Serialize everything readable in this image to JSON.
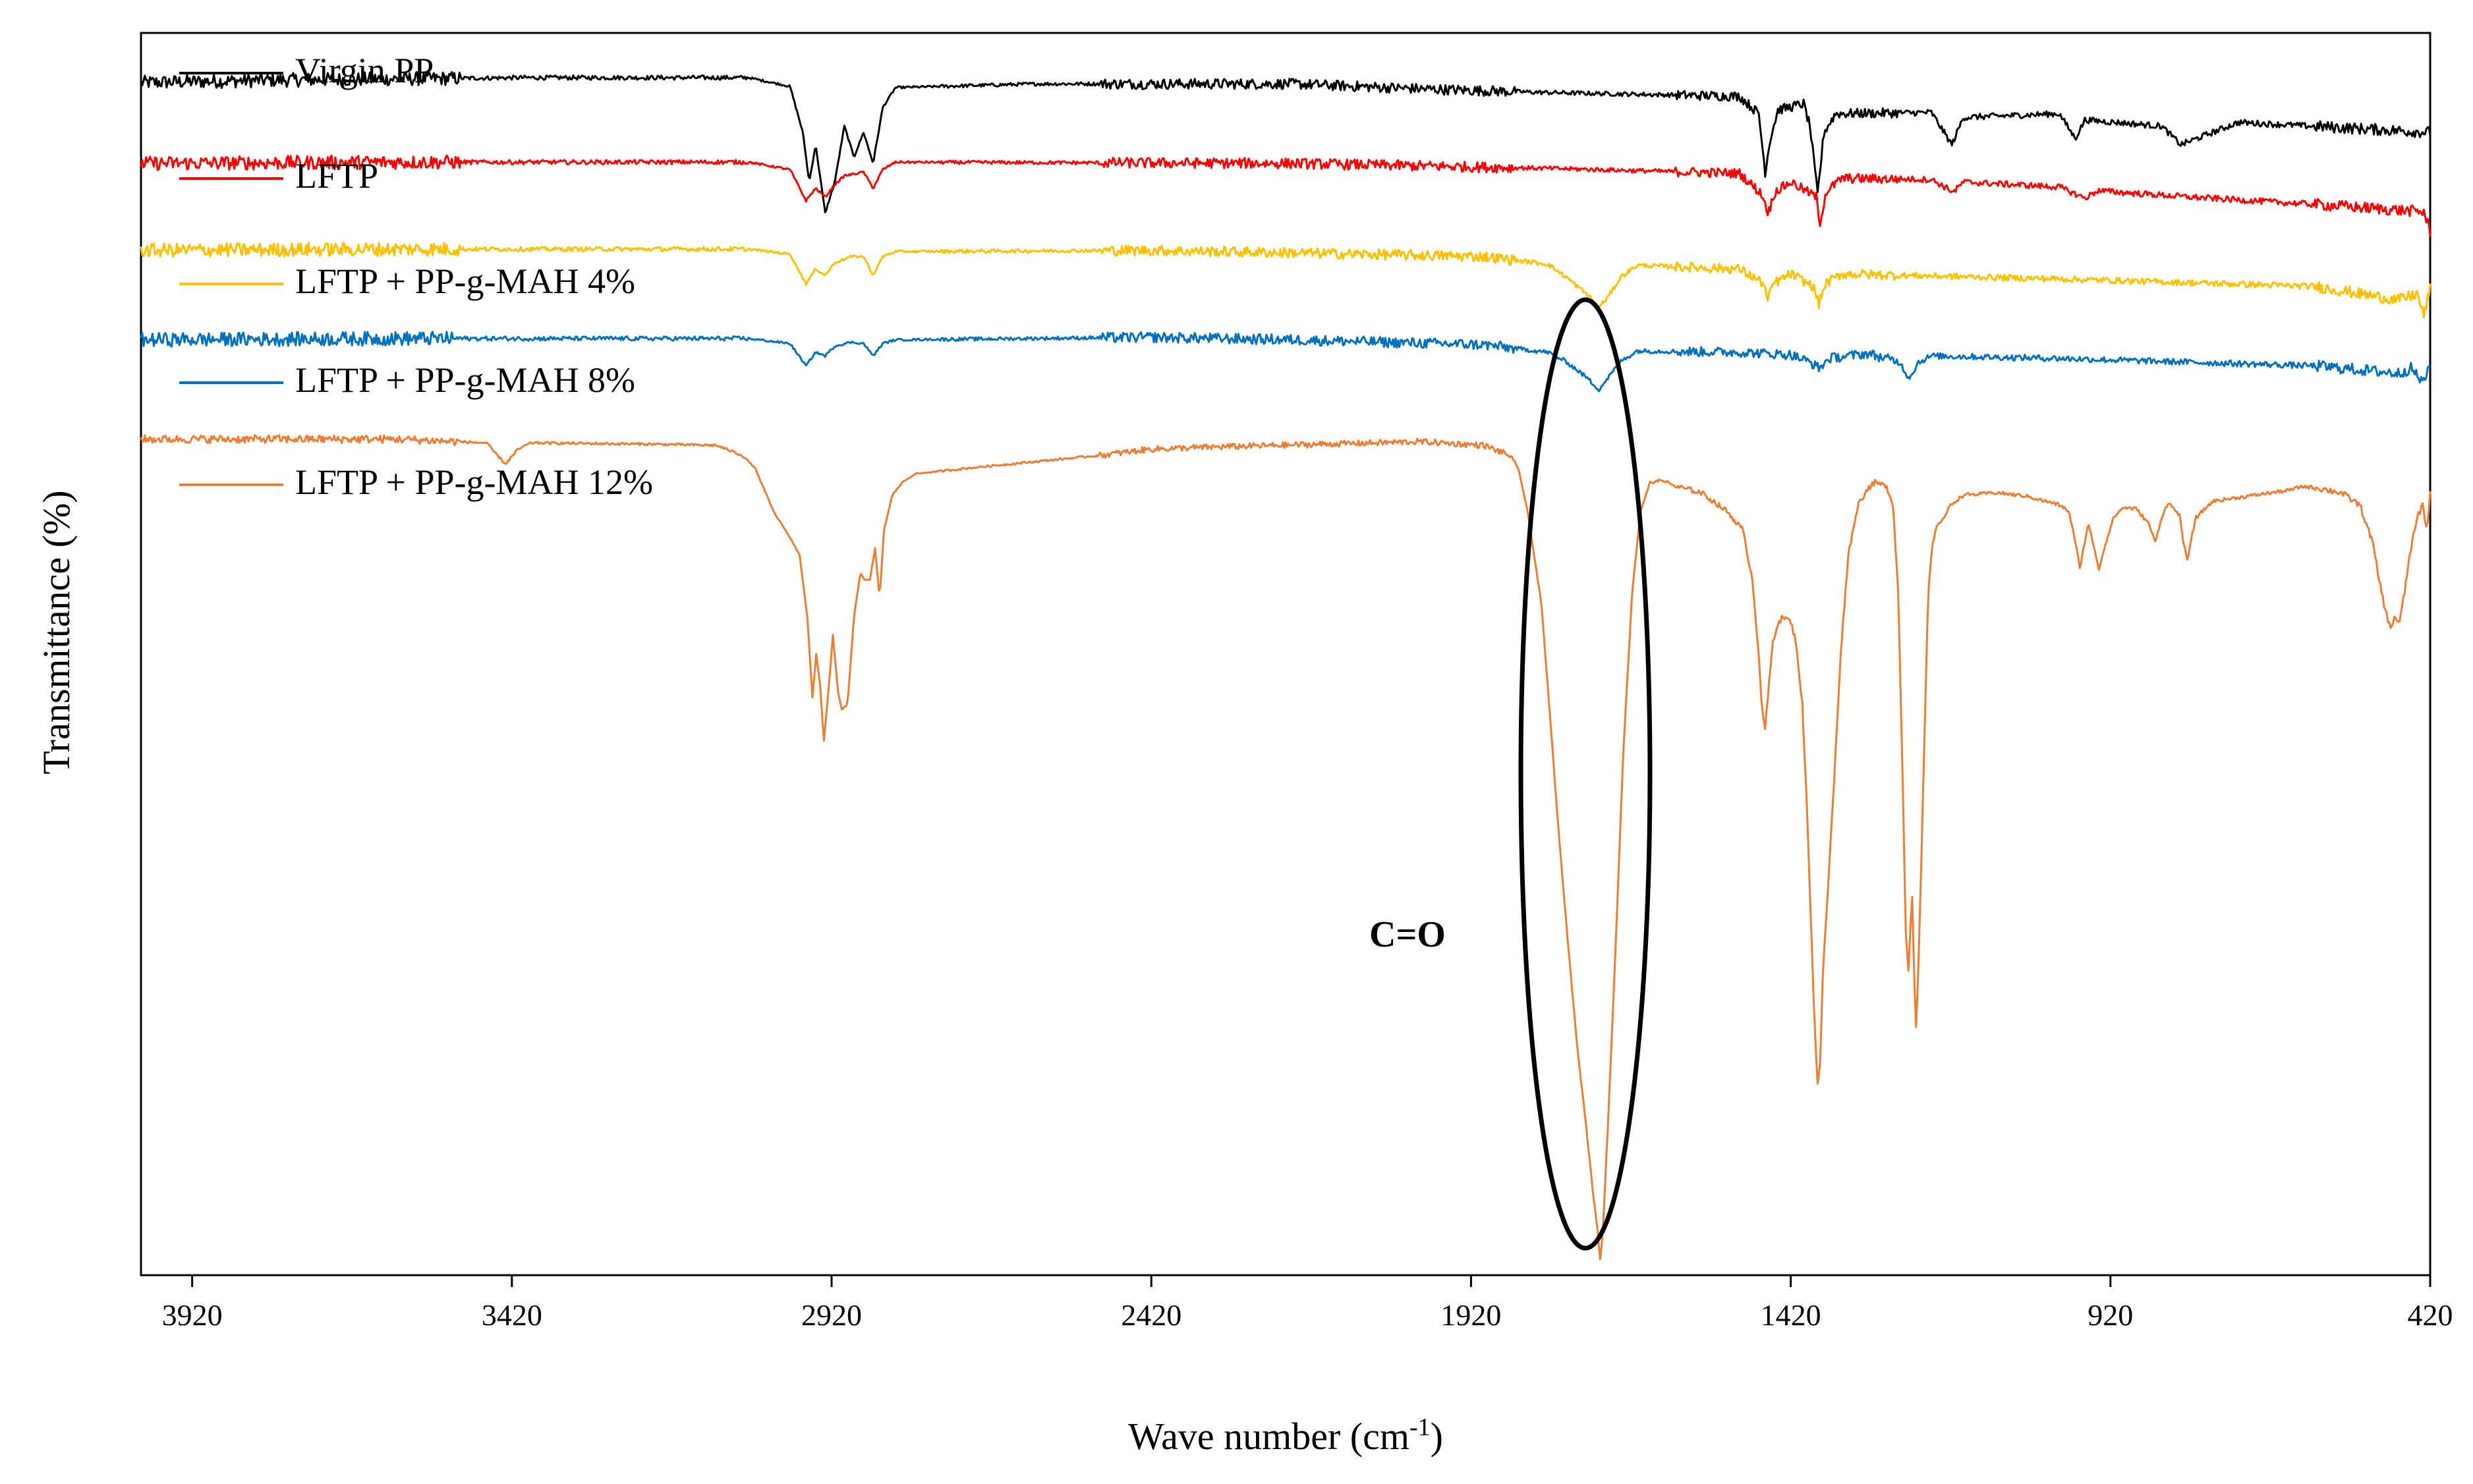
{
  "chart_data": {
    "type": "line",
    "title": "",
    "xlabel_base": "Wave number (cm",
    "xlabel_sup": "-1",
    "xlabel_tail": ")",
    "ylabel": "Transmittance (%)",
    "xlim": [
      4000,
      420
    ],
    "x_reversed": true,
    "ylim": [
      0,
      100
    ],
    "y_ticks_shown": false,
    "grid": false,
    "legend_position": "top-left",
    "x_ticks": [
      3920,
      3420,
      2920,
      2420,
      1920,
      1420,
      920,
      420
    ],
    "x_tick_labels": [
      "3920",
      "3420",
      "2920",
      "2420",
      "1920",
      "1420",
      "920",
      "420"
    ],
    "annotation": {
      "text": "C=O",
      "x": 1720,
      "shape": "ellipse"
    },
    "series": [
      {
        "name": "Virgin PP",
        "color": "#000000",
        "noise": 0.35,
        "points": [
          [
            4000,
            96.0
          ],
          [
            3800,
            96.2
          ],
          [
            3400,
            96.4
          ],
          [
            3050,
            96.4
          ],
          [
            2985,
            95.7
          ],
          [
            2965,
            92.0
          ],
          [
            2955,
            88.0
          ],
          [
            2945,
            91.0
          ],
          [
            2930,
            85.5
          ],
          [
            2915,
            88.0
          ],
          [
            2900,
            92.5
          ],
          [
            2885,
            90.0
          ],
          [
            2870,
            92.0
          ],
          [
            2855,
            89.5
          ],
          [
            2840,
            94.0
          ],
          [
            2820,
            95.6
          ],
          [
            2600,
            95.9
          ],
          [
            2200,
            95.9
          ],
          [
            2000,
            95.5
          ],
          [
            1800,
            95.2
          ],
          [
            1500,
            94.9
          ],
          [
            1470,
            93.5
          ],
          [
            1460,
            88.8
          ],
          [
            1452,
            91.5
          ],
          [
            1440,
            93.8
          ],
          [
            1400,
            94.3
          ],
          [
            1390,
            92.5
          ],
          [
            1378,
            87.0
          ],
          [
            1368,
            92.0
          ],
          [
            1350,
            93.5
          ],
          [
            1200,
            93.6
          ],
          [
            1168,
            91.0
          ],
          [
            1150,
            93.2
          ],
          [
            1000,
            93.5
          ],
          [
            975,
            91.5
          ],
          [
            960,
            93.0
          ],
          [
            840,
            92.5
          ],
          [
            810,
            91.0
          ],
          [
            720,
            92.8
          ],
          [
            420,
            92.0
          ]
        ]
      },
      {
        "name": "LFTP",
        "color": "#ff0000",
        "noise": 0.35,
        "points": [
          [
            4000,
            89.5
          ],
          [
            3600,
            89.6
          ],
          [
            3050,
            89.6
          ],
          [
            2985,
            89.0
          ],
          [
            2960,
            86.5
          ],
          [
            2945,
            87.5
          ],
          [
            2930,
            86.8
          ],
          [
            2915,
            87.8
          ],
          [
            2900,
            88.5
          ],
          [
            2870,
            88.8
          ],
          [
            2855,
            87.5
          ],
          [
            2840,
            89.0
          ],
          [
            2820,
            89.6
          ],
          [
            2200,
            89.5
          ],
          [
            2000,
            89.3
          ],
          [
            1800,
            89.1
          ],
          [
            1500,
            88.7
          ],
          [
            1465,
            87.0
          ],
          [
            1455,
            85.5
          ],
          [
            1445,
            87.2
          ],
          [
            1420,
            88.0
          ],
          [
            1380,
            86.8
          ],
          [
            1375,
            84.5
          ],
          [
            1365,
            87.2
          ],
          [
            1340,
            88.3
          ],
          [
            1200,
            88.2
          ],
          [
            1165,
            87.2
          ],
          [
            1150,
            88.0
          ],
          [
            1000,
            87.6
          ],
          [
            960,
            86.7
          ],
          [
            940,
            87.3
          ],
          [
            800,
            86.8
          ],
          [
            600,
            86.2
          ],
          [
            430,
            85.6
          ],
          [
            420,
            84.0
          ]
        ]
      },
      {
        "name": "LFTP + PP-g-MAH 4%",
        "color": "#ffc000",
        "noise": 0.35,
        "points": [
          [
            4000,
            82.5
          ],
          [
            3600,
            82.6
          ],
          [
            3050,
            82.6
          ],
          [
            2985,
            82.2
          ],
          [
            2960,
            79.8
          ],
          [
            2945,
            81.0
          ],
          [
            2930,
            80.5
          ],
          [
            2915,
            81.5
          ],
          [
            2890,
            82.0
          ],
          [
            2870,
            82.0
          ],
          [
            2855,
            80.5
          ],
          [
            2840,
            82.0
          ],
          [
            2820,
            82.4
          ],
          [
            2420,
            82.5
          ],
          [
            2200,
            82.3
          ],
          [
            1900,
            82.0
          ],
          [
            1800,
            81.4
          ],
          [
            1770,
            80.3
          ],
          [
            1735,
            78.8
          ],
          [
            1720,
            77.9
          ],
          [
            1705,
            78.8
          ],
          [
            1685,
            80.4
          ],
          [
            1660,
            81.3
          ],
          [
            1500,
            81.0
          ],
          [
            1462,
            79.8
          ],
          [
            1456,
            78.4
          ],
          [
            1448,
            79.8
          ],
          [
            1420,
            80.6
          ],
          [
            1385,
            79.6
          ],
          [
            1376,
            78.2
          ],
          [
            1366,
            79.8
          ],
          [
            1340,
            80.6
          ],
          [
            1000,
            80.2
          ],
          [
            600,
            79.6
          ],
          [
            470,
            78.5
          ],
          [
            440,
            79.0
          ],
          [
            430,
            77.2
          ],
          [
            420,
            79.5
          ]
        ]
      },
      {
        "name": "LFTP + PP-g-MAH 8%",
        "color": "#0070c0",
        "noise": 0.35,
        "points": [
          [
            4000,
            75.3
          ],
          [
            3600,
            75.4
          ],
          [
            3050,
            75.4
          ],
          [
            2985,
            75.0
          ],
          [
            2960,
            73.2
          ],
          [
            2945,
            74.3
          ],
          [
            2930,
            74.0
          ],
          [
            2915,
            74.8
          ],
          [
            2890,
            75.1
          ],
          [
            2870,
            75.0
          ],
          [
            2855,
            74.0
          ],
          [
            2840,
            75.0
          ],
          [
            2820,
            75.3
          ],
          [
            2420,
            75.5
          ],
          [
            2200,
            75.3
          ],
          [
            1900,
            74.9
          ],
          [
            1800,
            74.3
          ],
          [
            1770,
            73.5
          ],
          [
            1740,
            72.3
          ],
          [
            1720,
            71.3
          ],
          [
            1705,
            72.3
          ],
          [
            1685,
            73.6
          ],
          [
            1660,
            74.4
          ],
          [
            1500,
            74.3
          ],
          [
            1420,
            74.1
          ],
          [
            1390,
            73.5
          ],
          [
            1375,
            73.0
          ],
          [
            1360,
            73.8
          ],
          [
            1300,
            74.2
          ],
          [
            1250,
            73.5
          ],
          [
            1235,
            72.2
          ],
          [
            1220,
            73.5
          ],
          [
            1200,
            74.0
          ],
          [
            1000,
            73.8
          ],
          [
            600,
            73.2
          ],
          [
            470,
            72.6
          ],
          [
            450,
            73.0
          ],
          [
            430,
            71.8
          ],
          [
            420,
            73.5
          ]
        ]
      },
      {
        "name": "LFTP + PP-g-MAH 12%",
        "color": "#ed7d31",
        "noise": 0.2,
        "points": [
          [
            4000,
            67.3
          ],
          [
            3800,
            67.3
          ],
          [
            3600,
            67.3
          ],
          [
            3460,
            67.0
          ],
          [
            3450,
            66.4
          ],
          [
            3430,
            65.3
          ],
          [
            3410,
            66.5
          ],
          [
            3390,
            67.0
          ],
          [
            3200,
            66.9
          ],
          [
            3100,
            66.8
          ],
          [
            3060,
            66.0
          ],
          [
            3040,
            65.0
          ],
          [
            3010,
            61.4
          ],
          [
            2990,
            59.8
          ],
          [
            2970,
            58.0
          ],
          [
            2958,
            53.0
          ],
          [
            2950,
            46.5
          ],
          [
            2944,
            50.0
          ],
          [
            2938,
            47.5
          ],
          [
            2932,
            43.0
          ],
          [
            2925,
            47.0
          ],
          [
            2918,
            51.5
          ],
          [
            2910,
            47.0
          ],
          [
            2904,
            45.5
          ],
          [
            2895,
            46.0
          ],
          [
            2885,
            53.0
          ],
          [
            2875,
            56.5
          ],
          [
            2868,
            56.0
          ],
          [
            2860,
            56.0
          ],
          [
            2852,
            58.5
          ],
          [
            2845,
            54.5
          ],
          [
            2838,
            60.0
          ],
          [
            2825,
            62.8
          ],
          [
            2810,
            63.8
          ],
          [
            2790,
            64.5
          ],
          [
            2700,
            65.0
          ],
          [
            2600,
            65.5
          ],
          [
            2500,
            66.0
          ],
          [
            2420,
            66.5
          ],
          [
            2300,
            66.7
          ],
          [
            2150,
            66.9
          ],
          [
            2000,
            67.1
          ],
          [
            1900,
            66.8
          ],
          [
            1860,
            66.0
          ],
          [
            1845,
            64.8
          ],
          [
            1830,
            61.0
          ],
          [
            1810,
            54.0
          ],
          [
            1795,
            44.0
          ],
          [
            1782,
            35.0
          ],
          [
            1768,
            26.5
          ],
          [
            1755,
            19.0
          ],
          [
            1740,
            12.0
          ],
          [
            1730,
            7.0
          ],
          [
            1722,
            3.5
          ],
          [
            1718,
            1.2
          ],
          [
            1714,
            3.5
          ],
          [
            1706,
            12.0
          ],
          [
            1695,
            25.0
          ],
          [
            1682,
            42.0
          ],
          [
            1668,
            55.0
          ],
          [
            1655,
            61.5
          ],
          [
            1640,
            63.8
          ],
          [
            1620,
            64.0
          ],
          [
            1600,
            63.5
          ],
          [
            1560,
            63.0
          ],
          [
            1520,
            61.5
          ],
          [
            1495,
            60.0
          ],
          [
            1480,
            56.0
          ],
          [
            1470,
            50.0
          ],
          [
            1465,
            45.5
          ],
          [
            1460,
            44.0
          ],
          [
            1455,
            47.0
          ],
          [
            1448,
            51.0
          ],
          [
            1440,
            52.5
          ],
          [
            1432,
            53.0
          ],
          [
            1420,
            52.6
          ],
          [
            1412,
            51.0
          ],
          [
            1402,
            46.0
          ],
          [
            1395,
            38.0
          ],
          [
            1388,
            28.0
          ],
          [
            1383,
            20.5
          ],
          [
            1378,
            15.5
          ],
          [
            1374,
            17.0
          ],
          [
            1370,
            24.0
          ],
          [
            1362,
            31.0
          ],
          [
            1352,
            40.0
          ],
          [
            1342,
            50.0
          ],
          [
            1330,
            58.0
          ],
          [
            1315,
            62.0
          ],
          [
            1300,
            63.3
          ],
          [
            1288,
            63.8
          ],
          [
            1270,
            63.5
          ],
          [
            1260,
            62.0
          ],
          [
            1252,
            55.0
          ],
          [
            1245,
            40.0
          ],
          [
            1240,
            27.5
          ],
          [
            1236,
            24.5
          ],
          [
            1233,
            28.0
          ],
          [
            1230,
            30.5
          ],
          [
            1227,
            24.0
          ],
          [
            1224,
            20.0
          ],
          [
            1221,
            23.5
          ],
          [
            1216,
            33.0
          ],
          [
            1210,
            45.0
          ],
          [
            1205,
            55.0
          ],
          [
            1198,
            59.0
          ],
          [
            1190,
            60.5
          ],
          [
            1180,
            61.0
          ],
          [
            1170,
            62.0
          ],
          [
            1150,
            62.8
          ],
          [
            1120,
            62.9
          ],
          [
            1100,
            63.0
          ],
          [
            1050,
            62.7
          ],
          [
            1000,
            62.0
          ],
          [
            985,
            61.5
          ],
          [
            975,
            59.0
          ],
          [
            968,
            57.0
          ],
          [
            962,
            58.5
          ],
          [
            955,
            60.5
          ],
          [
            945,
            58.5
          ],
          [
            938,
            56.8
          ],
          [
            930,
            58.5
          ],
          [
            915,
            61.0
          ],
          [
            900,
            61.8
          ],
          [
            880,
            61.7
          ],
          [
            860,
            60.5
          ],
          [
            850,
            59.0
          ],
          [
            840,
            61.0
          ],
          [
            830,
            62.2
          ],
          [
            812,
            61.2
          ],
          [
            806,
            59.0
          ],
          [
            800,
            57.5
          ],
          [
            794,
            59.2
          ],
          [
            786,
            61.0
          ],
          [
            760,
            62.3
          ],
          [
            720,
            62.6
          ],
          [
            680,
            62.9
          ],
          [
            640,
            63.2
          ],
          [
            620,
            63.5
          ],
          [
            600,
            63.4
          ],
          [
            560,
            63.0
          ],
          [
            530,
            62.0
          ],
          [
            510,
            59.0
          ],
          [
            500,
            56.0
          ],
          [
            490,
            53.5
          ],
          [
            482,
            52.0
          ],
          [
            476,
            53.0
          ],
          [
            468,
            52.5
          ],
          [
            460,
            55.0
          ],
          [
            452,
            58.0
          ],
          [
            440,
            61.0
          ],
          [
            432,
            62.0
          ],
          [
            425,
            60.0
          ],
          [
            420,
            63.0
          ]
        ]
      }
    ]
  }
}
